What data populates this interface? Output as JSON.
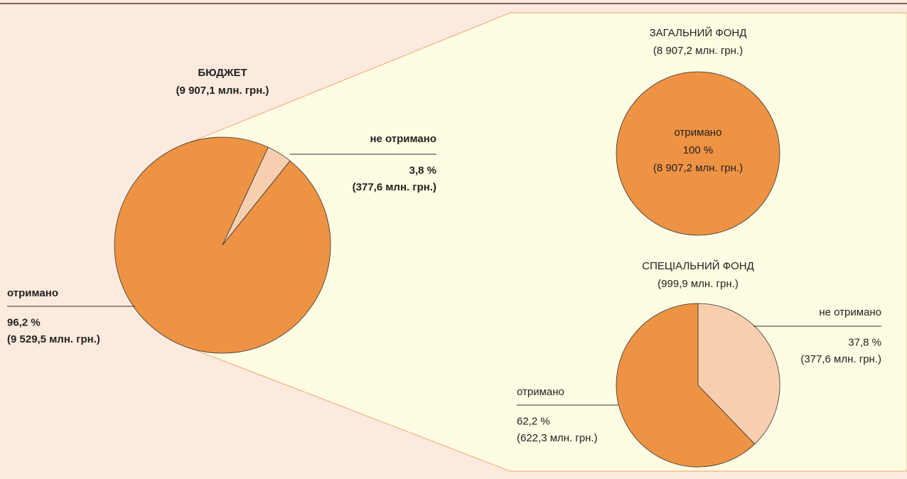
{
  "chart_data": [
    {
      "type": "pie",
      "title": "БЮДЖЕТ",
      "subtitle": "(9 907,1 млн. грн.)",
      "categories": [
        "не отримано",
        "отримано"
      ],
      "values": [
        3.8,
        96.2
      ],
      "value_labels": [
        "3,8 %",
        "96,2 %"
      ],
      "amount_labels": [
        "(377,6 млн. грн.)",
        "(9 529,5 млн. грн.)"
      ],
      "colors": [
        "#f8cfae",
        "#ee9344"
      ]
    },
    {
      "type": "pie",
      "title": "ЗАГАЛЬНИЙ ФОНД",
      "subtitle": "(8 907,2 млн. грн.)",
      "categories": [
        "отримано"
      ],
      "values": [
        100
      ],
      "value_labels": [
        "100 %"
      ],
      "amount_labels": [
        "(8 907,2 млн. грн.)"
      ],
      "colors": [
        "#ee9344"
      ]
    },
    {
      "type": "pie",
      "title": "СПЕЦІАЛЬНИЙ ФОНД",
      "subtitle": "(999,9 млн. грн.)",
      "categories": [
        "не отримано",
        "отримано"
      ],
      "values": [
        37.8,
        62.2
      ],
      "value_labels": [
        "37,8 %",
        "62,2 %"
      ],
      "amount_labels": [
        "(377,6 млн. грн.)",
        "(622,3 млн. грн.)"
      ],
      "colors": [
        "#f8cfae",
        "#ee9344"
      ]
    }
  ]
}
